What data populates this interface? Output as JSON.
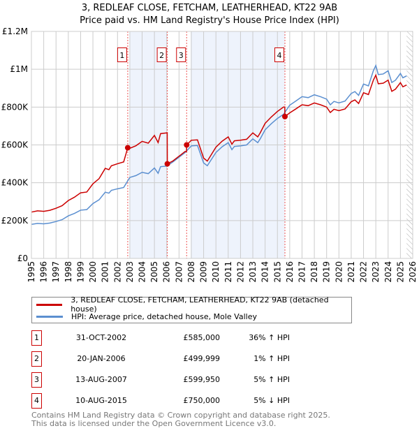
{
  "chart_data": {
    "type": "line",
    "title": "3, REDLEAF CLOSE, FETCHAM, LEATHERHEAD, KT22 9AB",
    "subtitle": "Price paid vs. HM Land Registry's House Price Index (HPI)",
    "xlim": [
      1995,
      2026
    ],
    "ylim": [
      0,
      1200000
    ],
    "yticks": [
      {
        "v": 0,
        "label": "£0"
      },
      {
        "v": 200000,
        "label": "£200K"
      },
      {
        "v": 400000,
        "label": "£400K"
      },
      {
        "v": 600000,
        "label": "£600K"
      },
      {
        "v": 800000,
        "label": "£800K"
      },
      {
        "v": 1000000,
        "label": "£1M"
      },
      {
        "v": 1200000,
        "label": "£1.2M"
      }
    ],
    "xticks": [
      "1995",
      "1996",
      "1997",
      "1998",
      "1999",
      "2000",
      "2001",
      "2002",
      "2003",
      "2004",
      "2005",
      "2006",
      "2007",
      "2008",
      "2009",
      "2010",
      "2011",
      "2012",
      "2013",
      "2014",
      "2015",
      "2016",
      "2017",
      "2018",
      "2019",
      "2020",
      "2021",
      "2022",
      "2023",
      "2024",
      "2025",
      "2026"
    ],
    "grid": true,
    "shaded_ranges": [
      [
        2003.0,
        2006.05
      ],
      [
        2007.95,
        2015.6
      ]
    ],
    "hatched_from": 2025.5,
    "hpi_series": {
      "name": "HPI: Average price, detached house, Mole Valley",
      "color": "#5b8fd0",
      "x": [
        1995,
        1995.5,
        1996,
        1996.5,
        1997,
        1997.5,
        1998,
        1998.5,
        1999,
        1999.5,
        2000,
        2000.5,
        2001,
        2001.3,
        2001.5,
        2002,
        2002.5,
        2003,
        2003.5,
        2004,
        2004.5,
        2005,
        2005.3,
        2005.5,
        2006,
        2006.5,
        2007,
        2007.5,
        2008,
        2008.5,
        2009,
        2009.3,
        2009.5,
        2010,
        2010.5,
        2011,
        2011.3,
        2011.5,
        2012,
        2012.5,
        2013,
        2013.4,
        2013.6,
        2014,
        2014.5,
        2015,
        2015.5,
        2016,
        2016.5,
        2017,
        2017.5,
        2018,
        2018.5,
        2019,
        2019.3,
        2019.6,
        2020,
        2020.5,
        2021,
        2021.3,
        2021.6,
        2022,
        2022.4,
        2022.8,
        2023,
        2023.2,
        2023.6,
        2024,
        2024.3,
        2024.6,
        2025,
        2025.2,
        2025.5
      ],
      "y": [
        180000,
        185000,
        183000,
        187000,
        195000,
        205000,
        225000,
        238000,
        255000,
        258000,
        290000,
        310000,
        350000,
        345000,
        360000,
        368000,
        375000,
        428000,
        438000,
        455000,
        448000,
        478000,
        450000,
        485000,
        488000,
        510000,
        535000,
        560000,
        595000,
        597000,
        505000,
        490000,
        510000,
        560000,
        590000,
        612000,
        575000,
        592000,
        595000,
        600000,
        632000,
        612000,
        632000,
        680000,
        712000,
        740000,
        762000,
        810000,
        832000,
        855000,
        850000,
        865000,
        855000,
        842000,
        812000,
        830000,
        822000,
        832000,
        872000,
        882000,
        862000,
        922000,
        912000,
        992000,
        1020000,
        972000,
        975000,
        992000,
        930000,
        942000,
        978000,
        955000,
        965000
      ]
    },
    "price_series": {
      "name": "3, REDLEAF CLOSE, FETCHAM, LEATHERHEAD, KT22 9AB (detached house)",
      "color": "#cc0000"
    },
    "transactions": [
      {
        "n": "1",
        "x": 2002.83,
        "date": "31-OCT-2002",
        "price": 585000,
        "price_label": "£585,000",
        "hpi": "36% ↑ HPI",
        "ratio": 1.36
      },
      {
        "n": "2",
        "x": 2006.05,
        "date": "20-JAN-2006",
        "price": 499999,
        "price_label": "£499,999",
        "hpi": "1% ↑ HPI",
        "ratio": 1.01
      },
      {
        "n": "3",
        "x": 2007.62,
        "date": "13-AUG-2007",
        "price": 599950,
        "price_label": "£599,950",
        "hpi": "5% ↑ HPI",
        "ratio": 1.05
      },
      {
        "n": "4",
        "x": 2015.61,
        "date": "10-AUG-2015",
        "price": 750000,
        "price_label": "£750,000",
        "hpi": "5% ↓ HPI",
        "ratio": 0.95
      }
    ]
  },
  "footer": {
    "line1": "Contains HM Land Registry data © Crown copyright and database right 2025.",
    "line2": "This data is licensed under the Open Government Licence v3.0."
  }
}
